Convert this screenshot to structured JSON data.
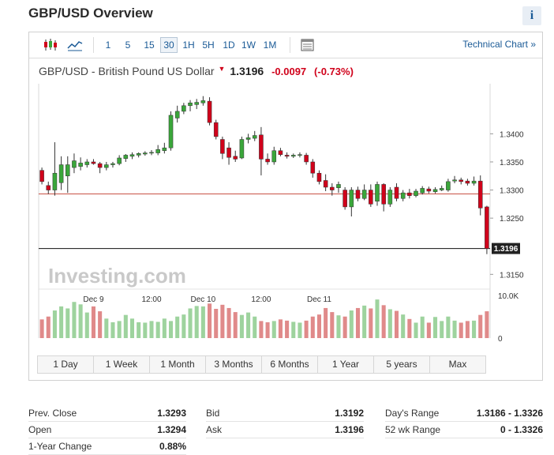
{
  "page": {
    "title": "GBP/USD Overview"
  },
  "toolbar": {
    "timeframes": [
      "1",
      "5",
      "15",
      "30",
      "1H",
      "5H",
      "1D",
      "1W",
      "1M"
    ],
    "active_timeframe": "30",
    "technical_link": "Technical Chart »",
    "icons": [
      "candlestick-chart-icon",
      "line-chart-icon",
      "table-view-icon"
    ]
  },
  "instrument": {
    "name": "GBP/USD - British Pound US Dollar",
    "price": "1.3196",
    "change": "-0.0097",
    "change_pct": "(-0.73%)",
    "direction_icon": "down-arrow-icon",
    "down_color": "#d0021b",
    "up_color": "#3aa63a"
  },
  "chart_data": {
    "type": "candlestick",
    "y_ticks": [
      "1.3400",
      "1.3350",
      "1.3300",
      "1.3250",
      "1.3150"
    ],
    "ylim": [
      1.3135,
      1.3475
    ],
    "x_labels": [
      "Dec 9",
      "12:00",
      "Dec 10",
      "12:00",
      "Dec 11"
    ],
    "prev_close_line": 1.3293,
    "last_price": 1.3196,
    "last_price_label": "1.3196",
    "watermark": "Investing.com",
    "volume_ticks": [
      "10.0K",
      "0"
    ],
    "candles": [
      {
        "o": 1.3335,
        "h": 1.334,
        "l": 1.331,
        "c": 1.3315
      },
      {
        "o": 1.3308,
        "h": 1.3315,
        "l": 1.3293,
        "c": 1.33
      },
      {
        "o": 1.33,
        "h": 1.3385,
        "l": 1.329,
        "c": 1.333
      },
      {
        "o": 1.3313,
        "h": 1.336,
        "l": 1.33,
        "c": 1.3345
      },
      {
        "o": 1.3325,
        "h": 1.336,
        "l": 1.3295,
        "c": 1.3345
      },
      {
        "o": 1.334,
        "h": 1.3365,
        "l": 1.333,
        "c": 1.3352
      },
      {
        "o": 1.3342,
        "h": 1.3358,
        "l": 1.3335,
        "c": 1.3348
      },
      {
        "o": 1.3345,
        "h": 1.3355,
        "l": 1.334,
        "c": 1.335
      },
      {
        "o": 1.335,
        "h": 1.3355,
        "l": 1.3345,
        "c": 1.3347
      },
      {
        "o": 1.3347,
        "h": 1.335,
        "l": 1.333,
        "c": 1.334
      },
      {
        "o": 1.334,
        "h": 1.335,
        "l": 1.3335,
        "c": 1.3345
      },
      {
        "o": 1.3345,
        "h": 1.335,
        "l": 1.334,
        "c": 1.3347
      },
      {
        "o": 1.3347,
        "h": 1.3362,
        "l": 1.3344,
        "c": 1.3357
      },
      {
        "o": 1.3356,
        "h": 1.3364,
        "l": 1.335,
        "c": 1.3362
      },
      {
        "o": 1.336,
        "h": 1.3367,
        "l": 1.3355,
        "c": 1.3363
      },
      {
        "o": 1.3362,
        "h": 1.3367,
        "l": 1.3358,
        "c": 1.3365
      },
      {
        "o": 1.3364,
        "h": 1.3369,
        "l": 1.3361,
        "c": 1.3366
      },
      {
        "o": 1.3366,
        "h": 1.3371,
        "l": 1.3362,
        "c": 1.3367
      },
      {
        "o": 1.3366,
        "h": 1.338,
        "l": 1.3362,
        "c": 1.3372
      },
      {
        "o": 1.337,
        "h": 1.3384,
        "l": 1.3365,
        "c": 1.3375
      },
      {
        "o": 1.3375,
        "h": 1.344,
        "l": 1.337,
        "c": 1.3433
      },
      {
        "o": 1.3428,
        "h": 1.345,
        "l": 1.342,
        "c": 1.344
      },
      {
        "o": 1.344,
        "h": 1.3455,
        "l": 1.3435,
        "c": 1.345
      },
      {
        "o": 1.345,
        "h": 1.346,
        "l": 1.344,
        "c": 1.3455
      },
      {
        "o": 1.3452,
        "h": 1.3462,
        "l": 1.3444,
        "c": 1.3456
      },
      {
        "o": 1.3455,
        "h": 1.3467,
        "l": 1.345,
        "c": 1.3459
      },
      {
        "o": 1.3458,
        "h": 1.3465,
        "l": 1.3415,
        "c": 1.342
      },
      {
        "o": 1.342,
        "h": 1.3425,
        "l": 1.339,
        "c": 1.3395
      },
      {
        "o": 1.339,
        "h": 1.3395,
        "l": 1.3355,
        "c": 1.3365
      },
      {
        "o": 1.3375,
        "h": 1.3385,
        "l": 1.3345,
        "c": 1.3358
      },
      {
        "o": 1.336,
        "h": 1.337,
        "l": 1.335,
        "c": 1.3355
      },
      {
        "o": 1.3357,
        "h": 1.3395,
        "l": 1.3355,
        "c": 1.339
      },
      {
        "o": 1.339,
        "h": 1.34,
        "l": 1.3383,
        "c": 1.3393
      },
      {
        "o": 1.3392,
        "h": 1.3405,
        "l": 1.3387,
        "c": 1.3397
      },
      {
        "o": 1.3398,
        "h": 1.3412,
        "l": 1.3326,
        "c": 1.3355
      },
      {
        "o": 1.3355,
        "h": 1.3365,
        "l": 1.3345,
        "c": 1.335
      },
      {
        "o": 1.335,
        "h": 1.3377,
        "l": 1.3345,
        "c": 1.337
      },
      {
        "o": 1.337,
        "h": 1.3375,
        "l": 1.336,
        "c": 1.3363
      },
      {
        "o": 1.3362,
        "h": 1.3367,
        "l": 1.3356,
        "c": 1.336
      },
      {
        "o": 1.336,
        "h": 1.3365,
        "l": 1.3357,
        "c": 1.3362
      },
      {
        "o": 1.3362,
        "h": 1.3367,
        "l": 1.3358,
        "c": 1.3363
      },
      {
        "o": 1.3362,
        "h": 1.3366,
        "l": 1.3345,
        "c": 1.335
      },
      {
        "o": 1.335,
        "h": 1.3355,
        "l": 1.3322,
        "c": 1.333
      },
      {
        "o": 1.333,
        "h": 1.3335,
        "l": 1.331,
        "c": 1.3315
      },
      {
        "o": 1.3317,
        "h": 1.3328,
        "l": 1.3298,
        "c": 1.3305
      },
      {
        "o": 1.3305,
        "h": 1.3312,
        "l": 1.329,
        "c": 1.33
      },
      {
        "o": 1.3304,
        "h": 1.3315,
        "l": 1.3295,
        "c": 1.331
      },
      {
        "o": 1.33,
        "h": 1.3305,
        "l": 1.3265,
        "c": 1.327
      },
      {
        "o": 1.327,
        "h": 1.3305,
        "l": 1.3253,
        "c": 1.33
      },
      {
        "o": 1.33,
        "h": 1.3306,
        "l": 1.328,
        "c": 1.3285
      },
      {
        "o": 1.3285,
        "h": 1.331,
        "l": 1.3282,
        "c": 1.33
      },
      {
        "o": 1.33,
        "h": 1.331,
        "l": 1.327,
        "c": 1.3275
      },
      {
        "o": 1.328,
        "h": 1.3315,
        "l": 1.3272,
        "c": 1.331
      },
      {
        "o": 1.331,
        "h": 1.3312,
        "l": 1.3262,
        "c": 1.3275
      },
      {
        "o": 1.3275,
        "h": 1.3305,
        "l": 1.327,
        "c": 1.33
      },
      {
        "o": 1.3305,
        "h": 1.3312,
        "l": 1.328,
        "c": 1.3285
      },
      {
        "o": 1.3285,
        "h": 1.33,
        "l": 1.328,
        "c": 1.3295
      },
      {
        "o": 1.3295,
        "h": 1.3302,
        "l": 1.3285,
        "c": 1.329
      },
      {
        "o": 1.329,
        "h": 1.3302,
        "l": 1.3287,
        "c": 1.3298
      },
      {
        "o": 1.3295,
        "h": 1.3307,
        "l": 1.3292,
        "c": 1.3303
      },
      {
        "o": 1.3302,
        "h": 1.3306,
        "l": 1.3294,
        "c": 1.3298
      },
      {
        "o": 1.3297,
        "h": 1.3305,
        "l": 1.3294,
        "c": 1.3301
      },
      {
        "o": 1.33,
        "h": 1.3308,
        "l": 1.3298,
        "c": 1.3303
      },
      {
        "o": 1.33,
        "h": 1.332,
        "l": 1.3297,
        "c": 1.3315
      },
      {
        "o": 1.3316,
        "h": 1.3325,
        "l": 1.3312,
        "c": 1.3318
      },
      {
        "o": 1.3318,
        "h": 1.3322,
        "l": 1.331,
        "c": 1.3315
      },
      {
        "o": 1.3316,
        "h": 1.332,
        "l": 1.3308,
        "c": 1.3312
      },
      {
        "o": 1.3312,
        "h": 1.3324,
        "l": 1.3308,
        "c": 1.3316
      },
      {
        "o": 1.3316,
        "h": 1.3326,
        "l": 1.3255,
        "c": 1.3268
      },
      {
        "o": 1.327,
        "h": 1.3272,
        "l": 1.3186,
        "c": 1.3196
      }
    ],
    "volumes": [
      4.6,
      5.3,
      6.8,
      7.8,
      7.3,
      8.9,
      8.3,
      6.3,
      7.8,
      6.6,
      4.8,
      3.9,
      4.2,
      5.7,
      4.8,
      3.9,
      3.8,
      4.2,
      4.0,
      4.8,
      4.2,
      5.3,
      5.8,
      7.3,
      7.9,
      7.8,
      8.5,
      7.2,
      8.2,
      7.4,
      6.4,
      5.7,
      6.3,
      5.3,
      4.2,
      3.9,
      4.2,
      4.6,
      4.3,
      4.0,
      3.8,
      4.3,
      5.3,
      5.8,
      7.4,
      6.4,
      5.6,
      5.3,
      6.8,
      7.4,
      8.0,
      7.3,
      9.5,
      8.1,
      7.1,
      6.7,
      5.8,
      4.7,
      3.8,
      5.3,
      3.8,
      5.2,
      4.2,
      5.3,
      4.3,
      3.8,
      4.2,
      4.3,
      5.7,
      6.6
    ]
  },
  "range_buttons": [
    "1 Day",
    "1 Week",
    "1 Month",
    "3 Months",
    "6 Months",
    "1 Year",
    "5 years",
    "Max"
  ],
  "stats": {
    "col1": [
      {
        "label": "Prev. Close",
        "value": "1.3293"
      },
      {
        "label": "Open",
        "value": "1.3294"
      },
      {
        "label": "1-Year Change",
        "value": "0.88%"
      }
    ],
    "col2": [
      {
        "label": "Bid",
        "value": "1.3192"
      },
      {
        "label": "Ask",
        "value": "1.3196"
      }
    ],
    "col3": [
      {
        "label": "Day's Range",
        "value": "1.3186 - 1.3326"
      },
      {
        "label": "52 wk Range",
        "value": "0 - 1.3326"
      }
    ]
  }
}
